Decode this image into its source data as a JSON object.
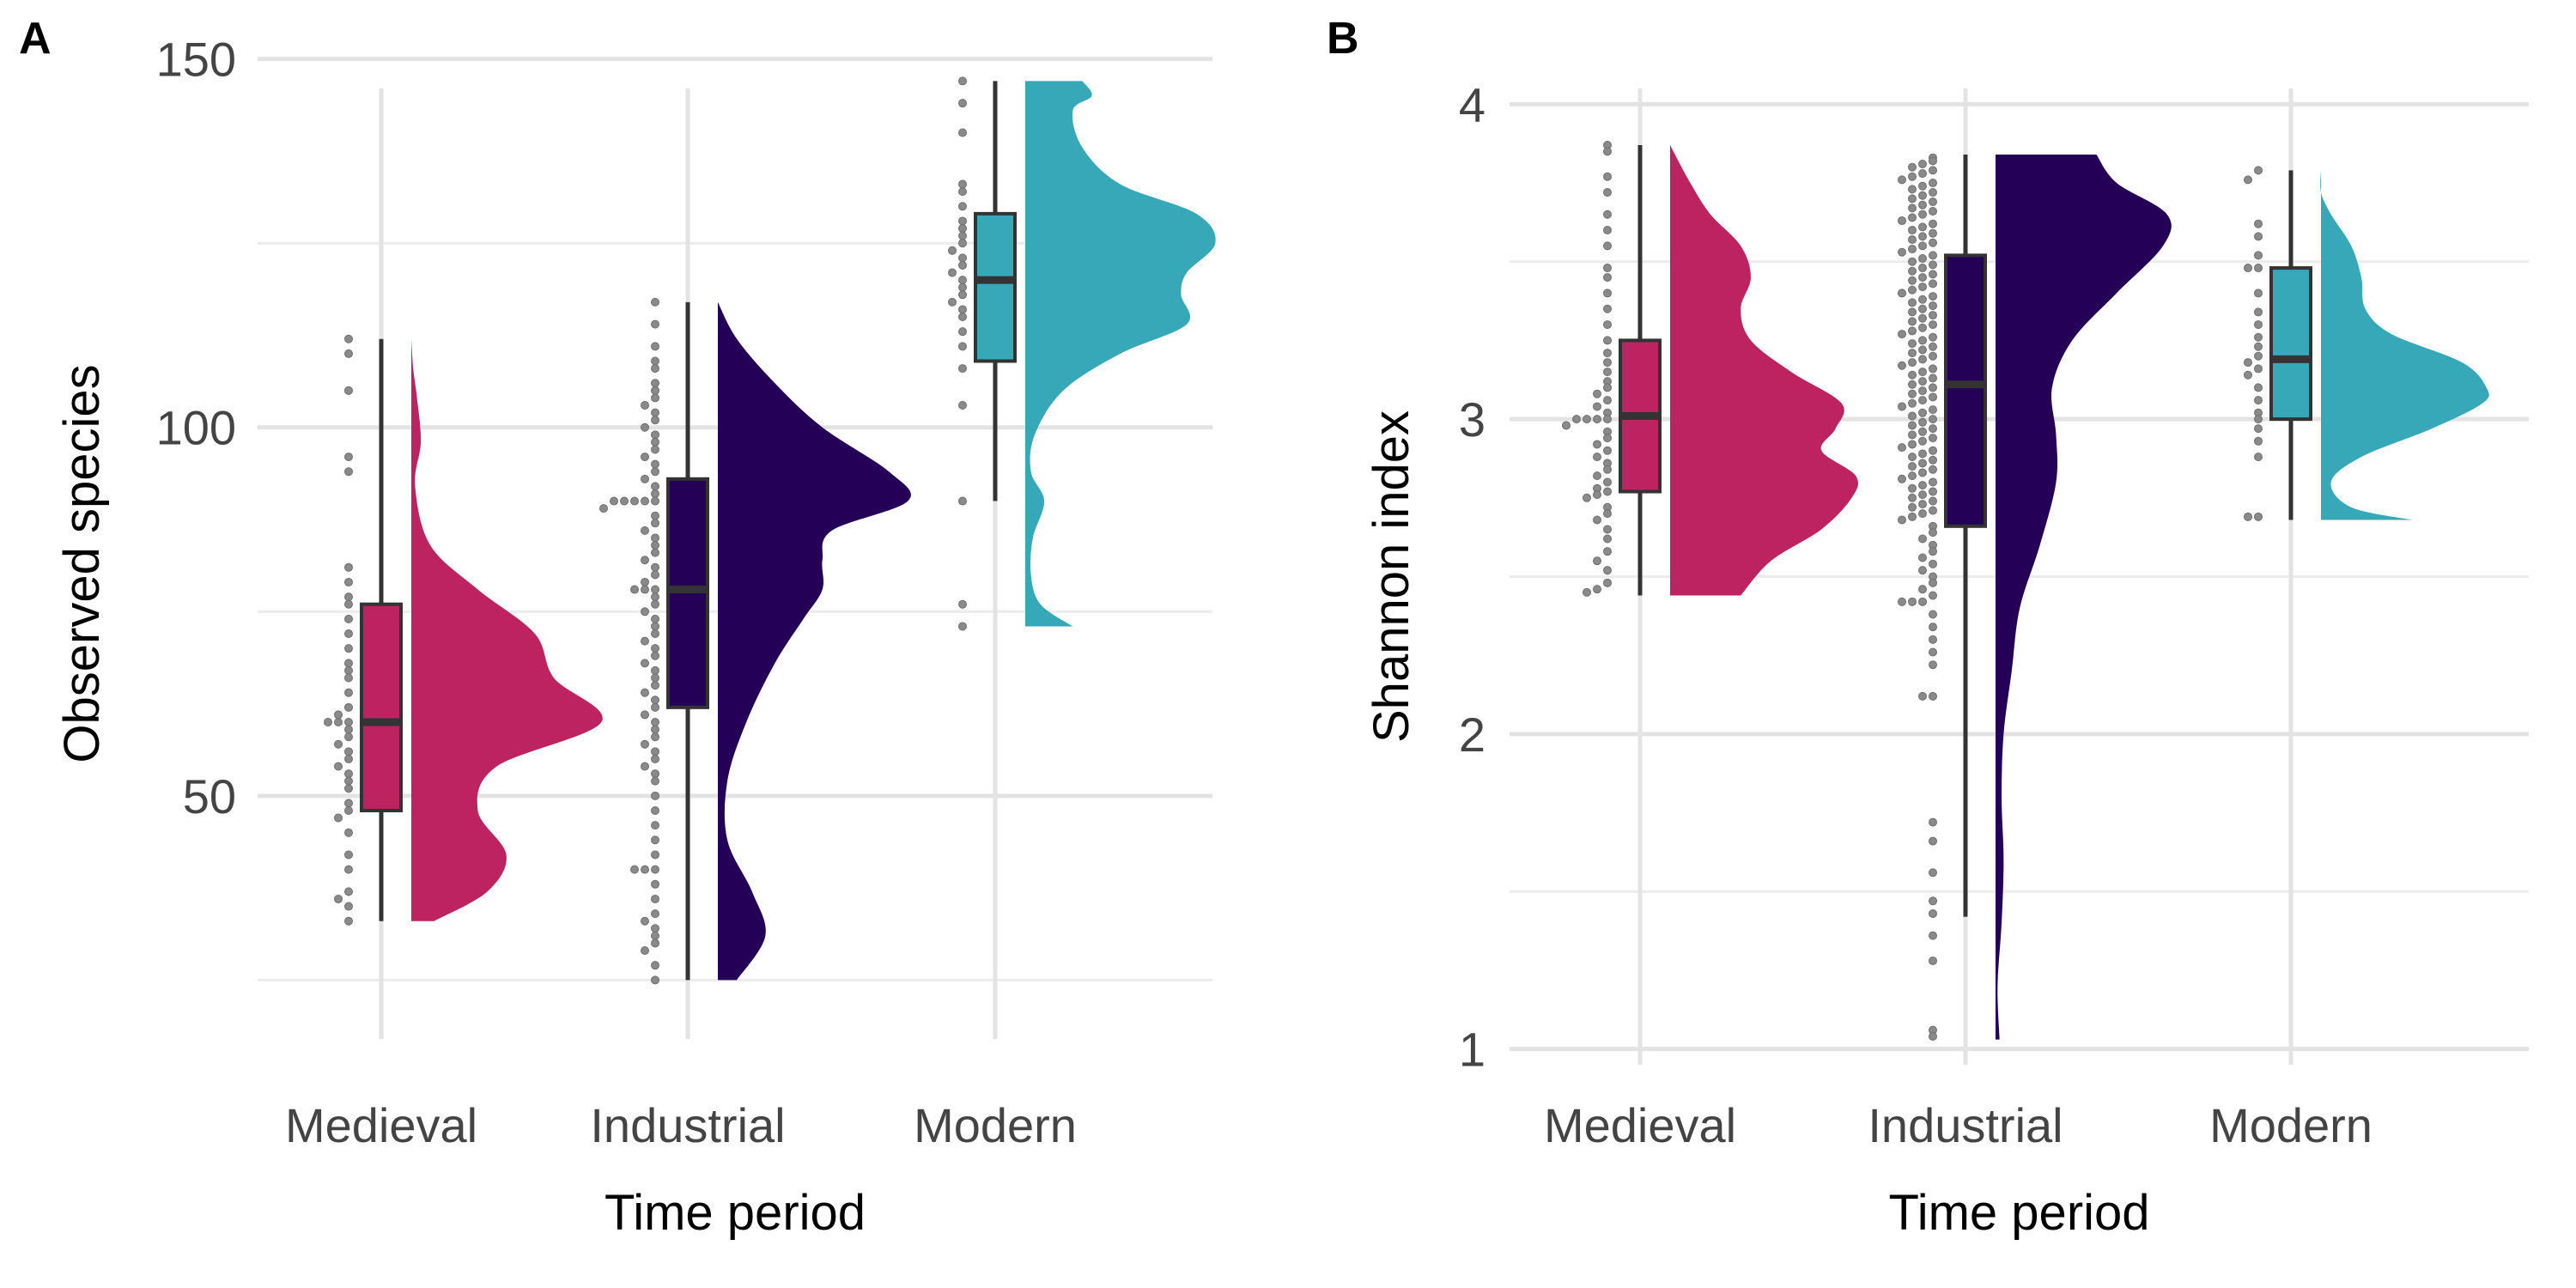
{
  "chart_data": [
    {
      "type": "raincloud",
      "panel_label": "A",
      "xlabel": "Time period",
      "ylabel": "Observed species",
      "categories": [
        "Medieval",
        "Industrial",
        "Modern"
      ],
      "ylim": [
        17,
        146
      ],
      "yticks": [
        50,
        100,
        150
      ],
      "y_minor": [
        25,
        75,
        125
      ],
      "colors": [
        "#BC2360",
        "#240156",
        "#37A8B8"
      ],
      "box": [
        {
          "min": 33,
          "q1": 48,
          "median": 60,
          "q3": 76,
          "max": 112
        },
        {
          "min": 25,
          "q1": 62,
          "median": 78,
          "q3": 93,
          "max": 117
        },
        {
          "min": 90,
          "q1": 109,
          "median": 120,
          "q3": 129,
          "max": 147
        }
      ],
      "density": [
        {
          "range": [
            33,
            112
          ],
          "knots": [
            [
              33,
              0.12
            ],
            [
              37,
              0.4
            ],
            [
              42,
              0.5
            ],
            [
              48,
              0.35
            ],
            [
              54,
              0.45
            ],
            [
              60,
              1.0
            ],
            [
              66,
              0.75
            ],
            [
              72,
              0.65
            ],
            [
              78,
              0.35
            ],
            [
              84,
              0.1
            ],
            [
              92,
              0.02
            ],
            [
              98,
              0.05
            ],
            [
              104,
              0.03
            ],
            [
              108,
              0.01
            ],
            [
              112,
              0.0
            ]
          ]
        },
        {
          "range": [
            25,
            117
          ],
          "knots": [
            [
              25,
              0.1
            ],
            [
              31,
              0.25
            ],
            [
              37,
              0.18
            ],
            [
              44,
              0.05
            ],
            [
              52,
              0.05
            ],
            [
              60,
              0.15
            ],
            [
              68,
              0.3
            ],
            [
              74,
              0.45
            ],
            [
              78,
              0.55
            ],
            [
              82,
              0.55
            ],
            [
              86,
              0.6
            ],
            [
              90,
              1.0
            ],
            [
              94,
              0.9
            ],
            [
              100,
              0.55
            ],
            [
              106,
              0.3
            ],
            [
              112,
              0.1
            ],
            [
              117,
              0.0
            ]
          ]
        },
        {
          "range": [
            73,
            147
          ],
          "knots": [
            [
              73,
              0.25
            ],
            [
              76,
              0.08
            ],
            [
              80,
              0.03
            ],
            [
              85,
              0.04
            ],
            [
              90,
              0.1
            ],
            [
              94,
              0.03
            ],
            [
              99,
              0.05
            ],
            [
              105,
              0.2
            ],
            [
              110,
              0.5
            ],
            [
              114,
              0.85
            ],
            [
              118,
              0.82
            ],
            [
              121,
              0.85
            ],
            [
              125,
              1.0
            ],
            [
              129,
              0.9
            ],
            [
              133,
              0.5
            ],
            [
              138,
              0.3
            ],
            [
              143,
              0.25
            ],
            [
              145,
              0.35
            ],
            [
              147,
              0.3
            ]
          ]
        }
      ],
      "points": [
        [
          112,
          110,
          105,
          96,
          94,
          81,
          79,
          77,
          76,
          74,
          72,
          70,
          68,
          67,
          66,
          64,
          62,
          61,
          60,
          60,
          60,
          59,
          58,
          57,
          56,
          55,
          54,
          53,
          52,
          51,
          49,
          48,
          47,
          45,
          42,
          40,
          37,
          36,
          35,
          33
        ],
        [
          117,
          114,
          111,
          109,
          108,
          106,
          105,
          104,
          103,
          102,
          101,
          100,
          99,
          98,
          97,
          96,
          95,
          94,
          93,
          92,
          91,
          90,
          90,
          90,
          90,
          90,
          89,
          88,
          87,
          86,
          85,
          84,
          83,
          82,
          81,
          80,
          79,
          78,
          78,
          78,
          77,
          76,
          75,
          74,
          73,
          72,
          71,
          70,
          69,
          68,
          67,
          66,
          65,
          64,
          63,
          62,
          61,
          60,
          59,
          58,
          57,
          56,
          55,
          54,
          53,
          52,
          50,
          48,
          46,
          44,
          42,
          40,
          40,
          40,
          38,
          36,
          34,
          33,
          32,
          31,
          30,
          29,
          27,
          25
        ],
        [
          147,
          144,
          140,
          133,
          132,
          130,
          128,
          127,
          126,
          125,
          124,
          123,
          122,
          121,
          120,
          119,
          118,
          117,
          116,
          115,
          113,
          111,
          108,
          103,
          90,
          76,
          73
        ]
      ]
    },
    {
      "type": "raincloud",
      "panel_label": "B",
      "xlabel": "Time period",
      "ylabel": "Shannon index",
      "categories": [
        "Medieval",
        "Industrial",
        "Modern"
      ],
      "ylim": [
        0.95,
        4.05
      ],
      "yticks": [
        1,
        2,
        3,
        4
      ],
      "y_minor": [
        1.5,
        2.5,
        3.5
      ],
      "colors": [
        "#BC2360",
        "#240156",
        "#37A8B8"
      ],
      "box": [
        {
          "min": 2.44,
          "q1": 2.77,
          "median": 3.01,
          "q3": 3.25,
          "max": 3.87
        },
        {
          "min": 1.42,
          "q1": 2.66,
          "median": 3.11,
          "q3": 3.52,
          "max": 3.84
        },
        {
          "min": 2.68,
          "q1": 3.0,
          "median": 3.19,
          "q3": 3.48,
          "max": 3.79
        }
      ],
      "density": [
        {
          "range": [
            2.44,
            3.87
          ],
          "knots": [
            [
              2.44,
              0.35
            ],
            [
              2.55,
              0.5
            ],
            [
              2.65,
              0.75
            ],
            [
              2.75,
              0.9
            ],
            [
              2.82,
              0.92
            ],
            [
              2.9,
              0.75
            ],
            [
              2.97,
              0.82
            ],
            [
              3.05,
              0.85
            ],
            [
              3.15,
              0.6
            ],
            [
              3.25,
              0.4
            ],
            [
              3.35,
              0.35
            ],
            [
              3.45,
              0.4
            ],
            [
              3.55,
              0.35
            ],
            [
              3.65,
              0.2
            ],
            [
              3.75,
              0.1
            ],
            [
              3.87,
              0.0
            ]
          ]
        },
        {
          "range": [
            1.03,
            3.84
          ],
          "knots": [
            [
              1.03,
              0.02
            ],
            [
              1.2,
              0.01
            ],
            [
              1.4,
              0.03
            ],
            [
              1.6,
              0.04
            ],
            [
              1.8,
              0.03
            ],
            [
              2.0,
              0.04
            ],
            [
              2.2,
              0.08
            ],
            [
              2.4,
              0.12
            ],
            [
              2.6,
              0.22
            ],
            [
              2.8,
              0.3
            ],
            [
              2.95,
              0.3
            ],
            [
              3.1,
              0.28
            ],
            [
              3.25,
              0.38
            ],
            [
              3.4,
              0.6
            ],
            [
              3.55,
              0.83
            ],
            [
              3.65,
              0.85
            ],
            [
              3.75,
              0.6
            ],
            [
              3.84,
              0.5
            ]
          ]
        },
        {
          "range": [
            2.68,
            3.79
          ],
          "knots": [
            [
              2.68,
              0.45
            ],
            [
              2.72,
              0.15
            ],
            [
              2.8,
              0.05
            ],
            [
              2.88,
              0.2
            ],
            [
              2.97,
              0.55
            ],
            [
              3.05,
              0.8
            ],
            [
              3.1,
              0.82
            ],
            [
              3.18,
              0.7
            ],
            [
              3.27,
              0.35
            ],
            [
              3.35,
              0.22
            ],
            [
              3.45,
              0.2
            ],
            [
              3.55,
              0.15
            ],
            [
              3.65,
              0.05
            ],
            [
              3.72,
              0.0
            ],
            [
              3.79,
              0.0
            ]
          ]
        }
      ],
      "points": [
        [
          3.87,
          3.85,
          3.77,
          3.72,
          3.65,
          3.6,
          3.55,
          3.48,
          3.45,
          3.4,
          3.35,
          3.3,
          3.25,
          3.21,
          3.18,
          3.15,
          3.12,
          3.1,
          3.08,
          3.06,
          3.04,
          3.02,
          3.0,
          3.0,
          3.0,
          3.0,
          2.98,
          2.96,
          2.94,
          2.92,
          2.9,
          2.88,
          2.86,
          2.84,
          2.82,
          2.8,
          2.78,
          2.77,
          2.76,
          2.75,
          2.72,
          2.7,
          2.68,
          2.65,
          2.62,
          2.58,
          2.55,
          2.52,
          2.48,
          2.46,
          2.45
        ],
        [
          3.83,
          3.82,
          3.81,
          3.8,
          3.79,
          3.78,
          3.77,
          3.76,
          3.75,
          3.74,
          3.73,
          3.72,
          3.71,
          3.7,
          3.69,
          3.68,
          3.67,
          3.66,
          3.65,
          3.64,
          3.63,
          3.62,
          3.61,
          3.6,
          3.59,
          3.58,
          3.57,
          3.56,
          3.55,
          3.54,
          3.53,
          3.52,
          3.51,
          3.5,
          3.49,
          3.48,
          3.47,
          3.46,
          3.45,
          3.44,
          3.43,
          3.42,
          3.41,
          3.4,
          3.39,
          3.38,
          3.37,
          3.36,
          3.35,
          3.34,
          3.33,
          3.32,
          3.31,
          3.3,
          3.29,
          3.28,
          3.27,
          3.26,
          3.25,
          3.24,
          3.23,
          3.22,
          3.21,
          3.2,
          3.19,
          3.18,
          3.17,
          3.16,
          3.15,
          3.14,
          3.13,
          3.12,
          3.11,
          3.1,
          3.09,
          3.08,
          3.07,
          3.06,
          3.05,
          3.04,
          3.03,
          3.02,
          3.01,
          3.0,
          2.99,
          2.98,
          2.97,
          2.96,
          2.95,
          2.94,
          2.93,
          2.92,
          2.91,
          2.9,
          2.89,
          2.88,
          2.87,
          2.86,
          2.85,
          2.84,
          2.83,
          2.82,
          2.81,
          2.8,
          2.79,
          2.78,
          2.77,
          2.76,
          2.75,
          2.74,
          2.73,
          2.72,
          2.71,
          2.7,
          2.69,
          2.68,
          2.66,
          2.64,
          2.62,
          2.6,
          2.58,
          2.56,
          2.54,
          2.52,
          2.5,
          2.48,
          2.46,
          2.44,
          2.42,
          2.42,
          2.42,
          2.38,
          2.34,
          2.3,
          2.26,
          2.22,
          2.12,
          2.12,
          1.72,
          1.66,
          1.56,
          1.47,
          1.43,
          1.36,
          1.28,
          1.06,
          1.04
        ],
        [
          3.79,
          3.76,
          3.62,
          3.58,
          3.52,
          3.48,
          3.48,
          3.4,
          3.34,
          3.3,
          3.26,
          3.23,
          3.2,
          3.18,
          3.16,
          3.14,
          3.1,
          3.06,
          3.02,
          3.0,
          2.97,
          2.93,
          2.88,
          2.69,
          2.69
        ]
      ]
    }
  ]
}
